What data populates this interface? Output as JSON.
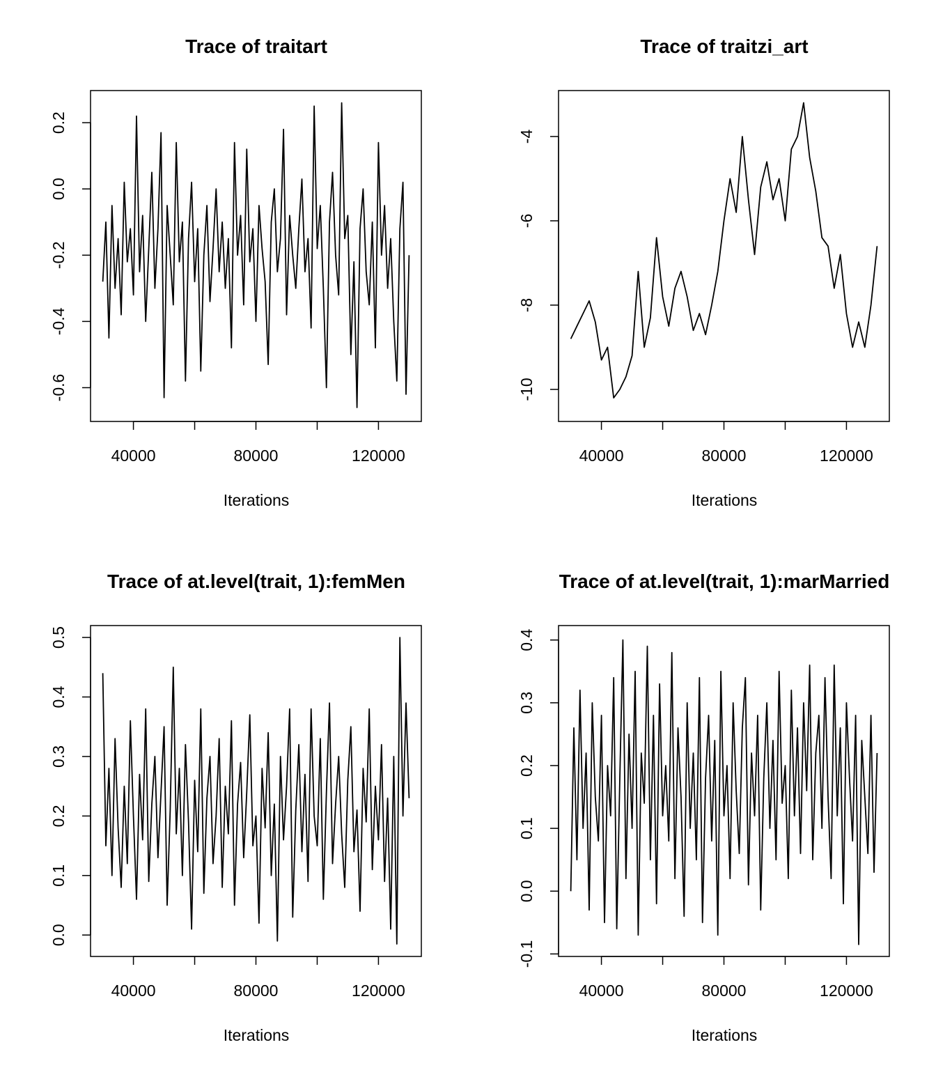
{
  "chart_data": [
    {
      "type": "line",
      "title": "Trace of traitart",
      "xlabel": "Iterations",
      "ylabel": "",
      "xlim": [
        26000,
        134000
      ],
      "ylim": [
        -0.702,
        0.297
      ],
      "xticks": [
        40000,
        60000,
        80000,
        100000,
        120000
      ],
      "xtick_labels": [
        "40000",
        "",
        "80000",
        "",
        "120000"
      ],
      "yticks": [
        -0.6,
        -0.4,
        -0.2,
        0.0,
        0.2
      ],
      "ytick_labels": [
        "-0.6",
        "-0.4",
        "-0.2",
        "0.0",
        "0.2"
      ],
      "x_range": [
        30000,
        130000
      ],
      "values": [
        -0.28,
        -0.1,
        -0.45,
        -0.05,
        -0.3,
        -0.15,
        -0.38,
        0.02,
        -0.22,
        -0.12,
        -0.32,
        0.22,
        -0.25,
        -0.08,
        -0.4,
        -0.18,
        0.05,
        -0.3,
        -0.12,
        0.17,
        -0.63,
        -0.05,
        -0.2,
        -0.35,
        0.14,
        -0.22,
        -0.1,
        -0.58,
        -0.15,
        0.02,
        -0.28,
        -0.12,
        -0.55,
        -0.2,
        -0.05,
        -0.34,
        -0.18,
        0.0,
        -0.25,
        -0.1,
        -0.3,
        -0.15,
        -0.48,
        0.14,
        -0.2,
        -0.08,
        -0.35,
        0.12,
        -0.22,
        -0.12,
        -0.4,
        -0.05,
        -0.18,
        -0.28,
        -0.53,
        -0.1,
        0.0,
        -0.25,
        -0.15,
        0.18,
        -0.38,
        -0.08,
        -0.2,
        -0.3,
        -0.12,
        0.03,
        -0.25,
        -0.15,
        -0.42,
        0.25,
        -0.18,
        -0.05,
        -0.3,
        -0.6,
        -0.1,
        0.05,
        -0.2,
        -0.32,
        0.26,
        -0.15,
        -0.08,
        -0.5,
        -0.22,
        -0.66,
        -0.12,
        0.0,
        -0.25,
        -0.35,
        -0.1,
        -0.48,
        0.14,
        -0.2,
        -0.05,
        -0.3,
        -0.15,
        -0.4,
        -0.58,
        -0.12,
        0.02,
        -0.62,
        -0.2
      ],
      "color": "#000000"
    },
    {
      "type": "line",
      "title": "Trace of traitzi_art",
      "xlabel": "Iterations",
      "ylabel": "",
      "xlim": [
        26000,
        134000
      ],
      "ylim": [
        -10.76,
        -2.91
      ],
      "xticks": [
        40000,
        60000,
        80000,
        100000,
        120000
      ],
      "xtick_labels": [
        "40000",
        "",
        "80000",
        "",
        "120000"
      ],
      "yticks": [
        -10,
        -8,
        -6,
        -4
      ],
      "ytick_labels": [
        "-10",
        "-8",
        "-6",
        "-4"
      ],
      "x_range": [
        30000,
        130000
      ],
      "values": [
        -8.8,
        -8.5,
        -8.2,
        -7.9,
        -8.4,
        -9.3,
        -9.0,
        -10.2,
        -10.0,
        -9.7,
        -9.2,
        -7.2,
        -9.0,
        -8.3,
        -6.4,
        -7.8,
        -8.5,
        -7.6,
        -7.2,
        -7.8,
        -8.6,
        -8.2,
        -8.7,
        -8.0,
        -7.2,
        -6.0,
        -5.0,
        -5.8,
        -4.0,
        -5.5,
        -6.8,
        -5.2,
        -4.6,
        -5.5,
        -5.0,
        -6.0,
        -4.3,
        -4.0,
        -3.2,
        -4.5,
        -5.3,
        -6.4,
        -6.6,
        -7.6,
        -6.8,
        -8.2,
        -9.0,
        -8.4,
        -9.0,
        -8.0,
        -6.6
      ],
      "color": "#000000"
    },
    {
      "type": "line",
      "title": "Trace of at.level(trait, 1):femMen",
      "xlabel": "Iterations",
      "ylabel": "",
      "xlim": [
        26000,
        134000
      ],
      "ylim": [
        -0.036,
        0.52
      ],
      "xticks": [
        40000,
        60000,
        80000,
        100000,
        120000
      ],
      "xtick_labels": [
        "40000",
        "",
        "80000",
        "",
        "120000"
      ],
      "yticks": [
        0.0,
        0.1,
        0.2,
        0.3,
        0.4,
        0.5
      ],
      "ytick_labels": [
        "0.0",
        "0.1",
        "0.2",
        "0.3",
        "0.4",
        "0.5"
      ],
      "x_range": [
        30000,
        130000
      ],
      "values": [
        0.44,
        0.15,
        0.28,
        0.1,
        0.33,
        0.18,
        0.08,
        0.25,
        0.12,
        0.36,
        0.2,
        0.06,
        0.27,
        0.16,
        0.38,
        0.09,
        0.22,
        0.3,
        0.13,
        0.24,
        0.35,
        0.05,
        0.21,
        0.45,
        0.17,
        0.28,
        0.1,
        0.32,
        0.19,
        0.01,
        0.26,
        0.14,
        0.38,
        0.07,
        0.23,
        0.3,
        0.12,
        0.2,
        0.33,
        0.08,
        0.25,
        0.17,
        0.36,
        0.05,
        0.22,
        0.29,
        0.13,
        0.24,
        0.37,
        0.15,
        0.2,
        0.02,
        0.28,
        0.18,
        0.34,
        0.1,
        0.22,
        -0.01,
        0.3,
        0.16,
        0.25,
        0.38,
        0.03,
        0.21,
        0.32,
        0.14,
        0.27,
        0.09,
        0.38,
        0.2,
        0.15,
        0.33,
        0.06,
        0.24,
        0.39,
        0.12,
        0.22,
        0.3,
        0.17,
        0.08,
        0.26,
        0.35,
        0.14,
        0.21,
        0.04,
        0.28,
        0.19,
        0.38,
        0.11,
        0.25,
        0.16,
        0.32,
        0.09,
        0.23,
        0.01,
        0.3,
        -0.015,
        0.5,
        0.2,
        0.39,
        0.23
      ],
      "color": "#000000"
    },
    {
      "type": "line",
      "title": "Trace of at.level(trait, 1):marMarried",
      "xlabel": "Iterations",
      "ylabel": "",
      "xlim": [
        26000,
        134000
      ],
      "ylim": [
        -0.104,
        0.423
      ],
      "xticks": [
        40000,
        60000,
        80000,
        100000,
        120000
      ],
      "xtick_labels": [
        "40000",
        "",
        "80000",
        "",
        "120000"
      ],
      "yticks": [
        -0.1,
        0.0,
        0.1,
        0.2,
        0.3,
        0.4
      ],
      "ytick_labels": [
        "-0.1",
        "0.0",
        "0.1",
        "0.2",
        "0.3",
        "0.4"
      ],
      "x_range": [
        30000,
        130000
      ],
      "values": [
        0.0,
        0.26,
        0.05,
        0.32,
        0.1,
        0.22,
        -0.03,
        0.3,
        0.15,
        0.08,
        0.28,
        -0.05,
        0.2,
        0.12,
        0.34,
        -0.06,
        0.18,
        0.4,
        0.02,
        0.25,
        0.1,
        0.35,
        -0.07,
        0.22,
        0.14,
        0.39,
        0.05,
        0.28,
        -0.02,
        0.33,
        0.12,
        0.2,
        0.08,
        0.38,
        0.02,
        0.26,
        0.15,
        -0.04,
        0.3,
        0.1,
        0.22,
        0.05,
        0.34,
        -0.05,
        0.18,
        0.28,
        0.08,
        0.24,
        -0.07,
        0.35,
        0.12,
        0.2,
        0.02,
        0.3,
        0.16,
        0.06,
        0.26,
        0.34,
        0.01,
        0.22,
        0.12,
        0.28,
        -0.03,
        0.18,
        0.3,
        0.1,
        0.24,
        0.05,
        0.35,
        0.14,
        0.2,
        0.02,
        0.32,
        0.12,
        0.26,
        0.06,
        0.3,
        0.16,
        0.36,
        0.05,
        0.22,
        0.28,
        0.1,
        0.34,
        0.15,
        0.02,
        0.36,
        0.12,
        0.26,
        -0.02,
        0.3,
        0.18,
        0.08,
        0.28,
        -0.085,
        0.24,
        0.15,
        0.06,
        0.28,
        0.03,
        0.22
      ],
      "color": "#000000"
    }
  ]
}
